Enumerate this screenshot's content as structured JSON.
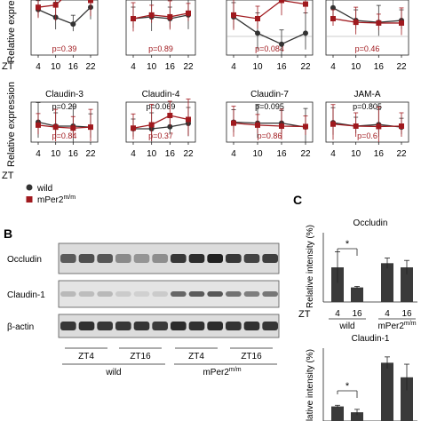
{
  "figure": {
    "panels": {
      "A": {
        "ylabel_top": "Relative express",
        "ylabel_bottom": "Relative expression",
        "zt_label": "ZT",
        "xticks": [
          "4",
          "10",
          "16",
          "22"
        ],
        "legend": {
          "wild": "wild",
          "mper2": "mPer2",
          "mper2_sup": "m/m"
        },
        "colors": {
          "wild": "#333333",
          "mper2": "#a0191e"
        }
      },
      "B": {
        "letter": "B",
        "rows": [
          "Occludin",
          "Claudin-1",
          "β-actin"
        ],
        "groups": [
          "ZT4",
          "ZT16",
          "ZT4",
          "ZT16"
        ],
        "genotypes": {
          "wild": "wild",
          "mper2": "mPer2",
          "mper2_sup": "m/m"
        }
      },
      "C": {
        "letter": "C",
        "ylabel": "Relative intensity (%)",
        "star": "*",
        "zt_label": "ZT",
        "xticks": [
          "4",
          "16",
          "4",
          "16"
        ],
        "genotypes": {
          "wild": "wild",
          "mper2": "mPer2",
          "mper2_sup": "m/m"
        }
      }
    }
  },
  "chart_data": [
    {
      "type": "line",
      "title": "",
      "x": [
        4,
        10,
        16,
        22
      ],
      "series": [
        {
          "name": "wild",
          "values": [
            1.0,
            0.83,
            0.68,
            1.05
          ]
        },
        {
          "name": "mPer2",
          "values": [
            1.05,
            1.1,
            1.45,
            1.2
          ]
        }
      ],
      "annotation": "p=0.39",
      "ylim": [
        0,
        1.6
      ]
    },
    {
      "type": "line",
      "title": "",
      "x": [
        4,
        10,
        16,
        22
      ],
      "series": [
        {
          "name": "wild",
          "values": [
            1.0,
            1.05,
            1.0,
            1.1
          ]
        },
        {
          "name": "mPer2",
          "values": [
            1.0,
            1.1,
            1.05,
            1.15
          ]
        }
      ],
      "annotation": "p=0.89",
      "ylim": [
        0,
        2.0
      ]
    },
    {
      "type": "line",
      "title": "",
      "x": [
        4,
        10,
        16,
        22
      ],
      "series": [
        {
          "name": "wild",
          "values": [
            1.05,
            0.6,
            0.3,
            0.6
          ]
        },
        {
          "name": "mPer2",
          "values": [
            1.1,
            1.0,
            1.5,
            1.4
          ]
        }
      ],
      "annotation": "p=0.084",
      "ylim": [
        0,
        2.0
      ]
    },
    {
      "type": "line",
      "title": "",
      "x": [
        4,
        10,
        16,
        22
      ],
      "series": [
        {
          "name": "wild",
          "values": [
            1.3,
            0.95,
            0.9,
            0.95
          ]
        },
        {
          "name": "mPer2",
          "values": [
            1.0,
            0.9,
            0.88,
            0.88
          ]
        }
      ],
      "annotation": "p=0.46",
      "ylim": [
        0,
        2.0
      ]
    },
    {
      "type": "line",
      "title": "Claudin-3",
      "x": [
        4,
        10,
        16,
        22
      ],
      "series": [
        {
          "name": "wild",
          "values": [
            1.0,
            0.8,
            0.8,
            0.75
          ]
        },
        {
          "name": "mPer2",
          "values": [
            0.85,
            0.75,
            0.7,
            0.75
          ]
        }
      ],
      "annotation_top": "p=0.29",
      "annotation": "p=0.84",
      "ylim": [
        0,
        2.0
      ]
    },
    {
      "type": "line",
      "title": "Claudin-4",
      "x": [
        4,
        10,
        16,
        22
      ],
      "series": [
        {
          "name": "wild",
          "values": [
            1.0,
            1.0,
            1.15,
            1.4
          ]
        },
        {
          "name": "mPer2",
          "values": [
            1.05,
            1.3,
            2.0,
            1.7
          ]
        }
      ],
      "annotation_top": "p=0.069",
      "annotation": "p=0.37",
      "ylim": [
        0,
        3.0
      ]
    },
    {
      "type": "line",
      "title": "Claudin-7",
      "x": [
        4,
        10,
        16,
        22
      ],
      "series": [
        {
          "name": "wild",
          "values": [
            1.0,
            0.95,
            0.95,
            0.75
          ]
        },
        {
          "name": "mPer2",
          "values": [
            0.95,
            0.85,
            0.8,
            0.78
          ]
        }
      ],
      "annotation_top": "p=0.095",
      "annotation": "p=0.86",
      "ylim": [
        0,
        2.0
      ]
    },
    {
      "type": "line",
      "title": "JAM-A",
      "x": [
        4,
        10,
        16,
        22
      ],
      "series": [
        {
          "name": "wild",
          "values": [
            0.97,
            0.8,
            0.88,
            0.75
          ]
        },
        {
          "name": "mPer2",
          "values": [
            0.9,
            0.8,
            0.78,
            0.8
          ]
        }
      ],
      "annotation_top": "p=0.805",
      "annotation": "p=0.6",
      "ylim": [
        0,
        2.0
      ]
    },
    {
      "type": "bar",
      "title": "Occludin",
      "categories": [
        "4",
        "16",
        "4",
        "16"
      ],
      "values": [
        100,
        42,
        112,
        100
      ],
      "errors": [
        45,
        3,
        15,
        20
      ],
      "ylim": [
        0,
        200
      ]
    },
    {
      "type": "bar",
      "title": "Claudin-1",
      "categories": [
        "4",
        "16",
        "4",
        "16"
      ],
      "values": [
        100,
        60,
        400,
        300
      ],
      "errors": [
        8,
        20,
        40,
        90
      ],
      "ylim": [
        0,
        500
      ]
    }
  ]
}
